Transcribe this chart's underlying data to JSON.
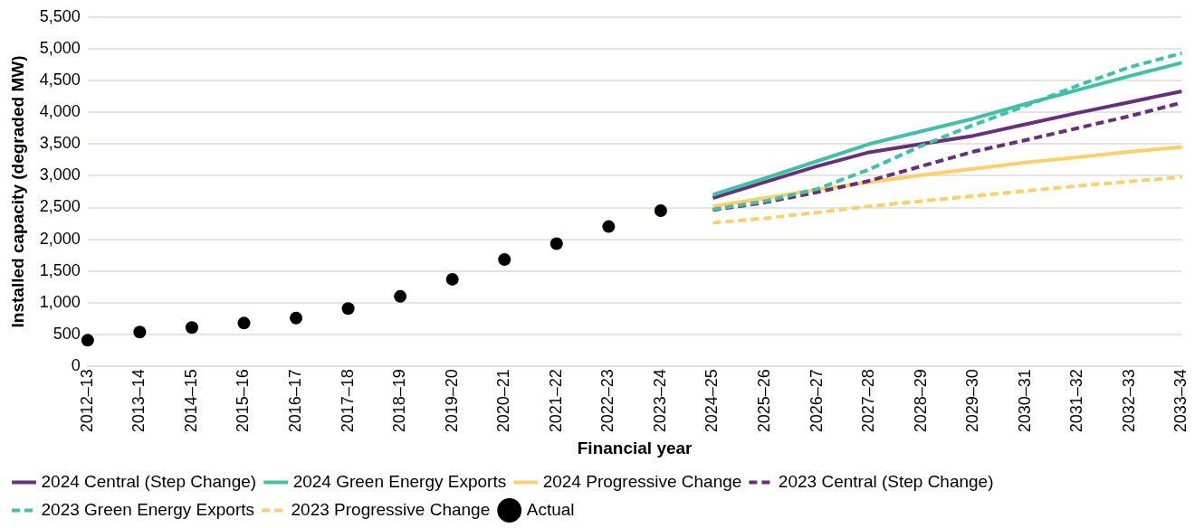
{
  "chart_data": {
    "type": "line",
    "xlabel": "Financial year",
    "ylabel": "Installed capacity (degraded MW)",
    "categories": [
      "2012–13",
      "2013–14",
      "2014–15",
      "2015–16",
      "2016–17",
      "2017–18",
      "2018–19",
      "2019–20",
      "2020–21",
      "2021–22",
      "2022–23",
      "2023–24",
      "2024–25",
      "2025–26",
      "2026–27",
      "2027–28",
      "2028–29",
      "2029–30",
      "2030–31",
      "2031–32",
      "2032–33",
      "2033–34"
    ],
    "ylim": [
      0,
      5500
    ],
    "yticks": [
      {
        "value": 0,
        "label": "0"
      },
      {
        "value": 500,
        "label": "500"
      },
      {
        "value": 1000,
        "label": "1,000"
      },
      {
        "value": 1500,
        "label": "1,500"
      },
      {
        "value": 2000,
        "label": "2,000"
      },
      {
        "value": 2500,
        "label": "2,500"
      },
      {
        "value": 3000,
        "label": "3,000"
      },
      {
        "value": 3500,
        "label": "3,500"
      },
      {
        "value": 4000,
        "label": "4,000"
      },
      {
        "value": 4500,
        "label": "4,500"
      },
      {
        "value": 5000,
        "label": "5,000"
      },
      {
        "value": 5500,
        "label": "5,500"
      }
    ],
    "grid": "y",
    "legend": "bottom",
    "series": [
      {
        "name": "2024 Central (Step Change)",
        "color": "#68307a",
        "line_style": "solid",
        "values": [
          null,
          null,
          null,
          null,
          null,
          null,
          null,
          null,
          null,
          null,
          null,
          null,
          2650,
          2900,
          3150,
          3370,
          3500,
          3630,
          3810,
          3990,
          4160,
          4330
        ]
      },
      {
        "name": "2024 Green Energy Exports",
        "color": "#3fc1a5",
        "line_style": "solid",
        "values": [
          null,
          null,
          null,
          null,
          null,
          null,
          null,
          null,
          null,
          null,
          null,
          null,
          2700,
          2960,
          3230,
          3500,
          3700,
          3900,
          4130,
          4350,
          4570,
          4780
        ]
      },
      {
        "name": "2024 Progressive Change",
        "color": "#fdd06c",
        "line_style": "solid",
        "values": [
          null,
          null,
          null,
          null,
          null,
          null,
          null,
          null,
          null,
          null,
          null,
          null,
          2520,
          2650,
          2780,
          2900,
          3010,
          3110,
          3210,
          3290,
          3380,
          3450
        ]
      },
      {
        "name": "2023 Central (Step Change)",
        "color": "#68307a",
        "line_style": "dashed",
        "values": [
          null,
          null,
          null,
          null,
          null,
          null,
          null,
          null,
          null,
          null,
          null,
          null,
          2460,
          2580,
          2740,
          2920,
          3150,
          3380,
          3560,
          3750,
          3940,
          4150
        ]
      },
      {
        "name": "2023 Green Energy Exports",
        "color": "#3fc1a5",
        "line_style": "dashed",
        "values": [
          null,
          null,
          null,
          null,
          null,
          null,
          null,
          null,
          null,
          null,
          null,
          null,
          2470,
          2600,
          2790,
          3100,
          3470,
          3800,
          4100,
          4420,
          4710,
          4930
        ]
      },
      {
        "name": "2023 Progressive Change",
        "color": "#fdd06c",
        "line_style": "dashed",
        "values": [
          null,
          null,
          null,
          null,
          null,
          null,
          null,
          null,
          null,
          null,
          null,
          null,
          2260,
          2330,
          2420,
          2520,
          2600,
          2680,
          2760,
          2840,
          2910,
          2980
        ]
      },
      {
        "name": "Actual",
        "color": "#000000",
        "type": "scatter",
        "marker": "circle",
        "values": [
          410,
          540,
          610,
          680,
          760,
          910,
          1100,
          1370,
          1680,
          1930,
          2200,
          2450,
          null,
          null,
          null,
          null,
          null,
          null,
          null,
          null,
          null,
          null
        ]
      }
    ]
  }
}
